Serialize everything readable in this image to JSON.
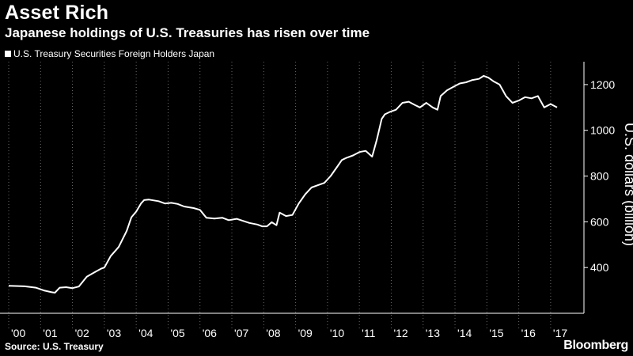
{
  "header": {
    "title": "Asset Rich",
    "subtitle": "Japanese holdings of U.S. Treasuries has risen over time"
  },
  "footer": {
    "source": "Source: U.S. Treasury",
    "brand": "Bloomberg"
  },
  "colors": {
    "background": "#000000",
    "line": "#ffffff",
    "gridline": "#6a6a6a"
  },
  "chart_data": {
    "type": "line",
    "title": "Asset Rich",
    "subtitle": "Japanese holdings of U.S. Treasuries has risen over time",
    "xlabel": "",
    "ylabel": "U.S. dollars (billion)",
    "y_axis_side": "right",
    "ylim": [
      200,
      1300
    ],
    "y_ticks": [
      400,
      600,
      800,
      1000,
      1200
    ],
    "x_ticks": [
      "'00",
      "'01",
      "'02",
      "'03",
      "'04",
      "'05",
      "'06",
      "'07",
      "'08",
      "'09",
      "'10",
      "'11",
      "'12",
      "'13",
      "'14",
      "'15",
      "'16",
      "'17"
    ],
    "xlim": [
      2000.0,
      2017.35
    ],
    "grid": "vertical dotted",
    "legend": "top-left",
    "series": [
      {
        "name": "U.S. Treasury Securities Foreign Holders Japan",
        "x": [
          2000.0,
          2000.5,
          2000.85,
          2001.1,
          2001.35,
          2001.45,
          2001.6,
          2001.8,
          2002.0,
          2002.2,
          2002.45,
          2002.7,
          2002.9,
          2003.0,
          2003.2,
          2003.45,
          2003.7,
          2003.85,
          2004.0,
          2004.15,
          2004.25,
          2004.4,
          2004.7,
          2004.9,
          2005.1,
          2005.3,
          2005.5,
          2005.8,
          2006.0,
          2006.2,
          2006.45,
          2006.7,
          2006.9,
          2007.15,
          2007.35,
          2007.55,
          2007.8,
          2007.95,
          2008.1,
          2008.25,
          2008.4,
          2008.5,
          2008.7,
          2008.9,
          2009.1,
          2009.3,
          2009.5,
          2009.7,
          2009.9,
          2010.1,
          2010.3,
          2010.45,
          2010.6,
          2010.8,
          2011.0,
          2011.2,
          2011.4,
          2011.55,
          2011.7,
          2011.8,
          2011.95,
          2012.15,
          2012.35,
          2012.55,
          2012.75,
          2012.9,
          2013.1,
          2013.3,
          2013.45,
          2013.55,
          2013.75,
          2013.95,
          2014.15,
          2014.35,
          2014.55,
          2014.75,
          2014.9,
          2015.05,
          2015.2,
          2015.4,
          2015.6,
          2015.8,
          2016.0,
          2016.2,
          2016.4,
          2016.6,
          2016.8,
          2017.0,
          2017.2
        ],
        "y": [
          320,
          318,
          312,
          300,
          292,
          290,
          312,
          314,
          310,
          317,
          360,
          380,
          395,
          400,
          450,
          490,
          560,
          620,
          645,
          680,
          695,
          697,
          690,
          680,
          683,
          678,
          667,
          660,
          652,
          618,
          614,
          618,
          607,
          613,
          604,
          595,
          588,
          580,
          580,
          598,
          585,
          640,
          625,
          630,
          680,
          720,
          750,
          760,
          770,
          800,
          840,
          870,
          880,
          890,
          905,
          910,
          885,
          960,
          1050,
          1070,
          1080,
          1090,
          1120,
          1125,
          1110,
          1100,
          1120,
          1100,
          1090,
          1150,
          1175,
          1190,
          1205,
          1210,
          1220,
          1225,
          1238,
          1230,
          1215,
          1200,
          1150,
          1120,
          1130,
          1145,
          1140,
          1150,
          1100,
          1115,
          1100
        ]
      }
    ]
  }
}
